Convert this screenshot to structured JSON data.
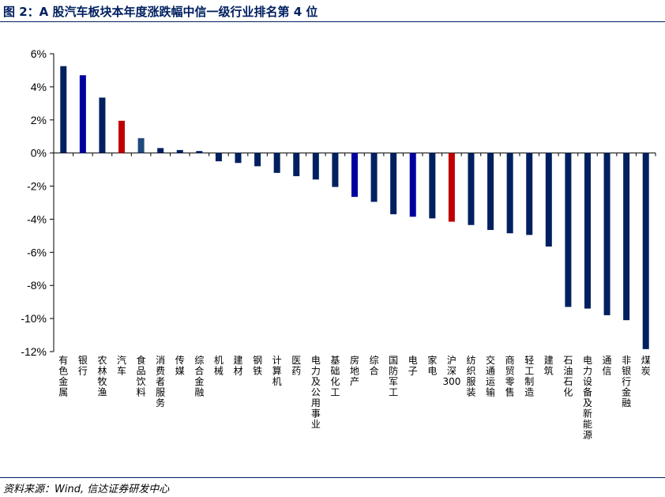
{
  "title": "图 2：A 股汽车板块本年度涨跌幅中信一级行业排名第 4 位",
  "source": "资料来源：Wind, 信达证券研发中心",
  "colors": {
    "default": "#002060",
    "highlight_blue": "#0000A0",
    "highlight_red": "#C00000",
    "steel": "#1F497D",
    "rule": "#002060"
  },
  "chart_data": {
    "type": "bar",
    "categories": [
      "有色金属",
      "银行",
      "农林牧渔",
      "汽车",
      "食品饮料",
      "消费者服务",
      "传媒",
      "综合金融",
      "机械",
      "建材",
      "钢铁",
      "计算机",
      "医药",
      "电力及公用事业",
      "基础化工",
      "房地产",
      "综合",
      "国防军工",
      "电子",
      "家电",
      "沪深300",
      "纺织服装",
      "交通运输",
      "商贸零售",
      "轻工制造",
      "建筑",
      "石油石化",
      "电力设备及新能源",
      "通信",
      "非银行金融",
      "煤炭"
    ],
    "values": [
      5.25,
      4.7,
      3.35,
      1.95,
      0.9,
      0.3,
      0.18,
      0.12,
      -0.5,
      -0.6,
      -0.8,
      -1.2,
      -1.4,
      -1.6,
      -2.05,
      -2.65,
      -2.95,
      -3.7,
      -3.85,
      -3.95,
      -4.15,
      -4.35,
      -4.65,
      -4.85,
      -4.95,
      -5.65,
      -9.3,
      -9.4,
      -9.8,
      -10.1,
      -11.85
    ],
    "bar_colors": [
      "#002060",
      "#0000A0",
      "#002060",
      "#C00000",
      "#1F497D",
      "#002060",
      "#002060",
      "#002060",
      "#002060",
      "#002060",
      "#002060",
      "#002060",
      "#002060",
      "#002060",
      "#002060",
      "#0000A0",
      "#002060",
      "#002060",
      "#0000A0",
      "#002060",
      "#C00000",
      "#002060",
      "#002060",
      "#002060",
      "#002060",
      "#002060",
      "#002060",
      "#002060",
      "#002060",
      "#002060",
      "#002060"
    ],
    "ylim": [
      -12,
      6
    ],
    "yticks": [
      6,
      4,
      2,
      0,
      -2,
      -4,
      -6,
      -8,
      -10,
      -12
    ],
    "ytick_labels": [
      "6%",
      "4%",
      "2%",
      "0%",
      "-2%",
      "-4%",
      "-6%",
      "-8%",
      "-10%",
      "-12%"
    ],
    "grid": false,
    "legend": "none"
  }
}
